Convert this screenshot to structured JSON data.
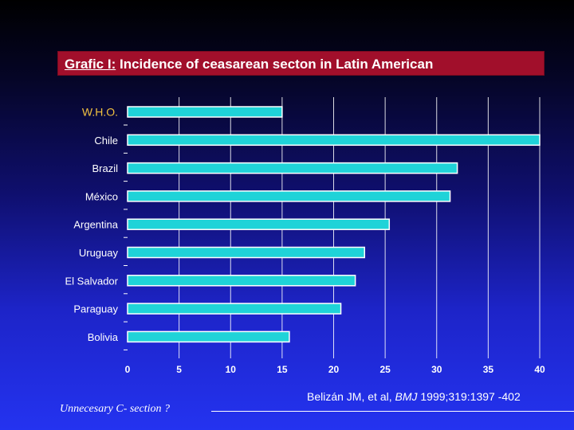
{
  "title": {
    "prefix": "Grafic I:",
    "text": "Incidence of ceasarean secton in Latin American"
  },
  "colors": {
    "bar": "#1fd3d8",
    "bar_edge": "#ffffff",
    "title_bg": "#a10f2b",
    "who_label": "#f0c040",
    "text": "#ffffff"
  },
  "chart_data": {
    "type": "bar",
    "orientation": "horizontal",
    "categories": [
      "W.H.O.",
      "Chile",
      "Brazil",
      "México",
      "Argentina",
      "Uruguay",
      "El Salvador",
      "Paraguay",
      "Bolivia"
    ],
    "values": [
      15,
      40,
      32,
      31.3,
      25.4,
      23,
      22.1,
      20.7,
      15.7
    ],
    "xlim": [
      0,
      40
    ],
    "xticks": [
      0,
      5,
      10,
      15,
      20,
      25,
      30,
      35,
      40
    ],
    "xlabel": "",
    "ylabel": "",
    "grid": "vertical"
  },
  "footer": {
    "left_note": "Unnecesary C- section ?",
    "citation_author": "Belizán JM, et al,",
    "citation_journal": "BMJ",
    "citation_ref": "1999;319:1397 -402"
  }
}
